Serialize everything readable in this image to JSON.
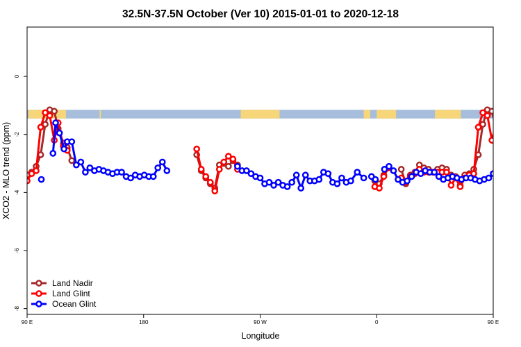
{
  "chart_data": {
    "type": "line",
    "title": "32.5N-37.5N October (Ver 10)   2015-01-01 to 2020-12-18",
    "xlabel": "Longitude",
    "ylabel": "XCO2 - MLO trend (ppm)",
    "xlim": [
      90,
      450
    ],
    "ylim": [
      -8.2,
      1.7
    ],
    "x_ticks": [
      {
        "value": 90,
        "label": "90 E"
      },
      {
        "value": 180,
        "label": "180"
      },
      {
        "value": 270,
        "label": "90 W"
      },
      {
        "value": 360,
        "label": "0"
      },
      {
        "value": 450,
        "label": "90 E"
      },
      {
        "value": 540,
        "label": "180"
      }
    ],
    "y_ticks": [
      {
        "value": 0,
        "label": "0"
      },
      {
        "value": -2,
        "label": "-2"
      },
      {
        "value": -4,
        "label": "-4"
      },
      {
        "value": -6,
        "label": "-6"
      },
      {
        "value": -8,
        "label": "-8"
      }
    ],
    "land_ocean_band": {
      "y_top": -1.15,
      "y_bottom": -1.45,
      "ocean_color": "#a6bddb",
      "land_color": "#f7d67a",
      "land_segments": [
        [
          91,
          120
        ],
        [
          146,
          147
        ],
        [
          255,
          285
        ],
        [
          350,
          355
        ],
        [
          360,
          375
        ],
        [
          405,
          425
        ],
        [
          451,
          480
        ],
        [
          505,
          510
        ]
      ]
    },
    "legend": {
      "position": "bottom-left"
    },
    "series": [
      {
        "name": "Land Nadir",
        "color": "#a52a2a",
        "points": [
          [
            90,
            -3.4
          ],
          [
            93.5,
            -3.3
          ],
          [
            97,
            -3.1
          ],
          [
            100.5,
            -2.7
          ],
          [
            104,
            -1.65
          ],
          [
            107.5,
            -1.15
          ],
          [
            111,
            -1.2
          ],
          [
            114,
            -1.8
          ],
          [
            118,
            -2.3
          ],
          [
            121,
            -2.45
          ],
          [
            124.5,
            -2.9
          ],
          [
            221,
            -2.7
          ],
          [
            224.5,
            -3.25
          ],
          [
            228,
            -3.5
          ],
          [
            231.5,
            -3.7
          ],
          [
            235,
            -3.85
          ],
          [
            238.5,
            -3.05
          ],
          [
            242,
            -3.0
          ],
          [
            245.5,
            -3.1
          ],
          [
            249,
            -2.9
          ],
          [
            252.5,
            -3.05
          ],
          [
            358.5,
            -3.6
          ],
          [
            362,
            -3.7
          ],
          [
            365.5,
            -3.4
          ],
          [
            379,
            -3.2
          ],
          [
            382.5,
            -3.7
          ],
          [
            386,
            -3.4
          ],
          [
            389.5,
            -3.3
          ],
          [
            393,
            -3.05
          ],
          [
            396.5,
            -3.15
          ],
          [
            400,
            -3.2
          ],
          [
            403.5,
            -3.3
          ],
          [
            407,
            -3.2
          ],
          [
            410.5,
            -3.15
          ],
          [
            414,
            -3.2
          ],
          [
            417.5,
            -3.4
          ],
          [
            421,
            -3.45
          ],
          [
            424.5,
            -3.75
          ],
          [
            428,
            -3.4
          ],
          [
            431.5,
            -3.35
          ],
          [
            435,
            -3.2
          ],
          [
            438.5,
            -2.7
          ],
          [
            442,
            -1.65
          ],
          [
            445.5,
            -1.15
          ],
          [
            449,
            -1.2
          ],
          [
            452.5,
            -1.8
          ],
          [
            456,
            -2.3
          ],
          [
            459.5,
            -2.45
          ],
          [
            463,
            -2.9
          ]
        ]
      },
      {
        "name": "Land Glint",
        "color": "#ff0000",
        "points": [
          [
            90,
            -3.6
          ],
          [
            93.5,
            -3.35
          ],
          [
            97,
            -3.25
          ],
          [
            100.5,
            -1.75
          ],
          [
            104,
            -1.25
          ],
          [
            107.5,
            -1.35
          ],
          [
            111,
            -2.2
          ],
          [
            114,
            -1.6
          ],
          [
            118,
            -2.4
          ],
          [
            121,
            -2.55
          ],
          [
            221,
            -2.5
          ],
          [
            224.5,
            -3.2
          ],
          [
            228,
            -3.45
          ],
          [
            231.5,
            -3.65
          ],
          [
            235,
            -3.95
          ],
          [
            238.5,
            -3.2
          ],
          [
            242,
            -2.95
          ],
          [
            245.5,
            -2.75
          ],
          [
            249,
            -2.85
          ],
          [
            252.5,
            -3.2
          ],
          [
            358.5,
            -3.8
          ],
          [
            362,
            -3.85
          ],
          [
            365.5,
            -3.45
          ],
          [
            369,
            -3.15
          ],
          [
            379,
            -3.5
          ],
          [
            382.5,
            -3.65
          ],
          [
            386,
            -3.45
          ],
          [
            389.5,
            -3.35
          ],
          [
            393,
            -3.2
          ],
          [
            396.5,
            -3.3
          ],
          [
            400,
            -3.3
          ],
          [
            403.5,
            -3.3
          ],
          [
            407,
            -3.3
          ],
          [
            410.5,
            -3.3
          ],
          [
            414,
            -3.3
          ],
          [
            417.5,
            -3.75
          ],
          [
            421,
            -3.5
          ],
          [
            424.5,
            -3.8
          ],
          [
            428,
            -3.5
          ],
          [
            431.5,
            -3.4
          ],
          [
            435,
            -3.35
          ],
          [
            438.5,
            -1.75
          ],
          [
            442,
            -1.25
          ],
          [
            445.5,
            -1.35
          ],
          [
            449,
            -2.2
          ],
          [
            452.5,
            -1.6
          ],
          [
            456,
            -2.4
          ],
          [
            459.5,
            -2.55
          ]
        ]
      },
      {
        "name": "Ocean Glint",
        "color": "#0000ff",
        "points": [
          [
            101,
            -3.55
          ],
          [
            110,
            -2.65
          ],
          [
            112,
            -1.6
          ],
          [
            115,
            -1.95
          ],
          [
            118.5,
            -2.5
          ],
          [
            121,
            -2.25
          ],
          [
            124.5,
            -2.25
          ],
          [
            128,
            -3.05
          ],
          [
            131.5,
            -2.95
          ],
          [
            135,
            -3.3
          ],
          [
            138.5,
            -3.15
          ],
          [
            142,
            -3.25
          ],
          [
            145.5,
            -3.2
          ],
          [
            149,
            -3.25
          ],
          [
            152.5,
            -3.3
          ],
          [
            156,
            -3.35
          ],
          [
            159.5,
            -3.3
          ],
          [
            163,
            -3.3
          ],
          [
            166.5,
            -3.45
          ],
          [
            170,
            -3.5
          ],
          [
            173.5,
            -3.4
          ],
          [
            177,
            -3.45
          ],
          [
            180.5,
            -3.4
          ],
          [
            184,
            -3.45
          ],
          [
            187.5,
            -3.45
          ],
          [
            191,
            -3.15
          ],
          [
            194.5,
            -2.95
          ],
          [
            198,
            -3.25
          ],
          [
            252.5,
            -3.1
          ],
          [
            256,
            -3.25
          ],
          [
            259.5,
            -3.25
          ],
          [
            263,
            -3.35
          ],
          [
            266.5,
            -3.45
          ],
          [
            270,
            -3.5
          ],
          [
            273.5,
            -3.7
          ],
          [
            277,
            -3.65
          ],
          [
            280.5,
            -3.75
          ],
          [
            284,
            -3.65
          ],
          [
            287.5,
            -3.75
          ],
          [
            291,
            -3.8
          ],
          [
            294.5,
            -3.65
          ],
          [
            298,
            -3.4
          ],
          [
            301.5,
            -3.85
          ],
          [
            305,
            -3.4
          ],
          [
            308.5,
            -3.6
          ],
          [
            312,
            -3.6
          ],
          [
            315.5,
            -3.55
          ],
          [
            319,
            -3.3
          ],
          [
            322.5,
            -3.35
          ],
          [
            326,
            -3.65
          ],
          [
            329.5,
            -3.7
          ],
          [
            333,
            -3.5
          ],
          [
            336.5,
            -3.65
          ],
          [
            340,
            -3.6
          ],
          [
            345,
            -3.3
          ],
          [
            350,
            -3.5
          ],
          [
            356,
            -3.45
          ],
          [
            359,
            -3.55
          ],
          [
            366,
            -3.2
          ],
          [
            369.5,
            -3.1
          ],
          [
            373,
            -3.25
          ],
          [
            376.5,
            -3.55
          ],
          [
            380,
            -3.65
          ],
          [
            383.5,
            -3.6
          ],
          [
            387,
            -3.45
          ],
          [
            390.5,
            -3.3
          ],
          [
            394,
            -3.35
          ],
          [
            397.5,
            -3.25
          ],
          [
            401,
            -3.3
          ],
          [
            404.5,
            -3.3
          ],
          [
            408,
            -3.45
          ],
          [
            411.5,
            -3.55
          ],
          [
            415,
            -3.5
          ],
          [
            418.5,
            -3.45
          ],
          [
            422,
            -3.5
          ],
          [
            425.5,
            -3.55
          ],
          [
            429,
            -3.5
          ],
          [
            432.5,
            -3.5
          ],
          [
            436,
            -3.55
          ],
          [
            439.5,
            -3.6
          ],
          [
            443,
            -3.55
          ],
          [
            446.5,
            -3.5
          ],
          [
            450,
            -3.35
          ],
          [
            453.5,
            -3.25
          ],
          [
            457,
            -3.15
          ],
          [
            460.5,
            -3.05
          ],
          [
            464,
            -3.0
          ],
          [
            467.5,
            -2.95
          ],
          [
            471,
            -3.3
          ],
          [
            474.5,
            -3.2
          ],
          [
            478,
            -3.25
          ],
          [
            481.5,
            -3.2
          ],
          [
            485,
            -3.25
          ],
          [
            488.5,
            -3.25
          ],
          [
            492,
            -3.15
          ],
          [
            495.5,
            -3.3
          ]
        ]
      }
    ]
  }
}
